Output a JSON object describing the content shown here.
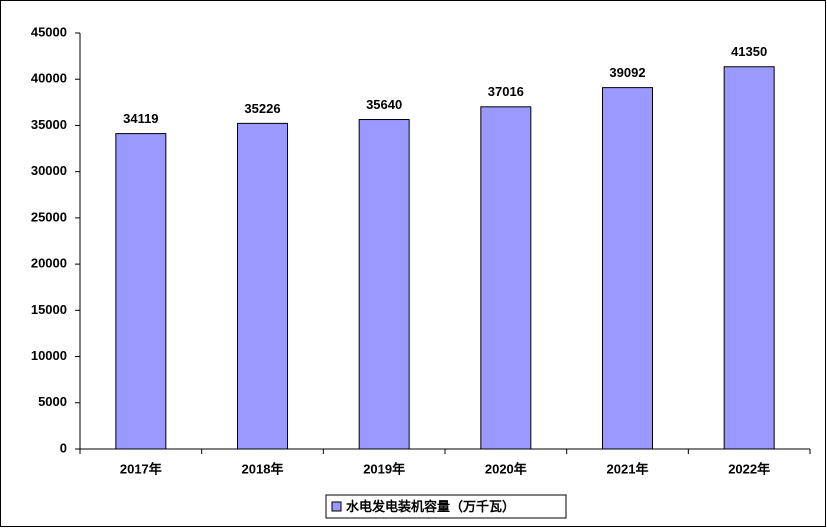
{
  "chart_data": {
    "type": "bar",
    "categories": [
      "2017年",
      "2018年",
      "2019年",
      "2020年",
      "2021年",
      "2022年"
    ],
    "series": [
      {
        "name": "水电发电装机容量（万千瓦）",
        "color": "#9999ff",
        "values": [
          34119,
          35226,
          35640,
          37016,
          39092,
          41350
        ]
      }
    ],
    "ylim": [
      0,
      45000
    ],
    "yticks": [
      0,
      5000,
      10000,
      15000,
      20000,
      25000,
      30000,
      35000,
      40000,
      45000
    ],
    "grid": false,
    "legend": "bottom"
  }
}
